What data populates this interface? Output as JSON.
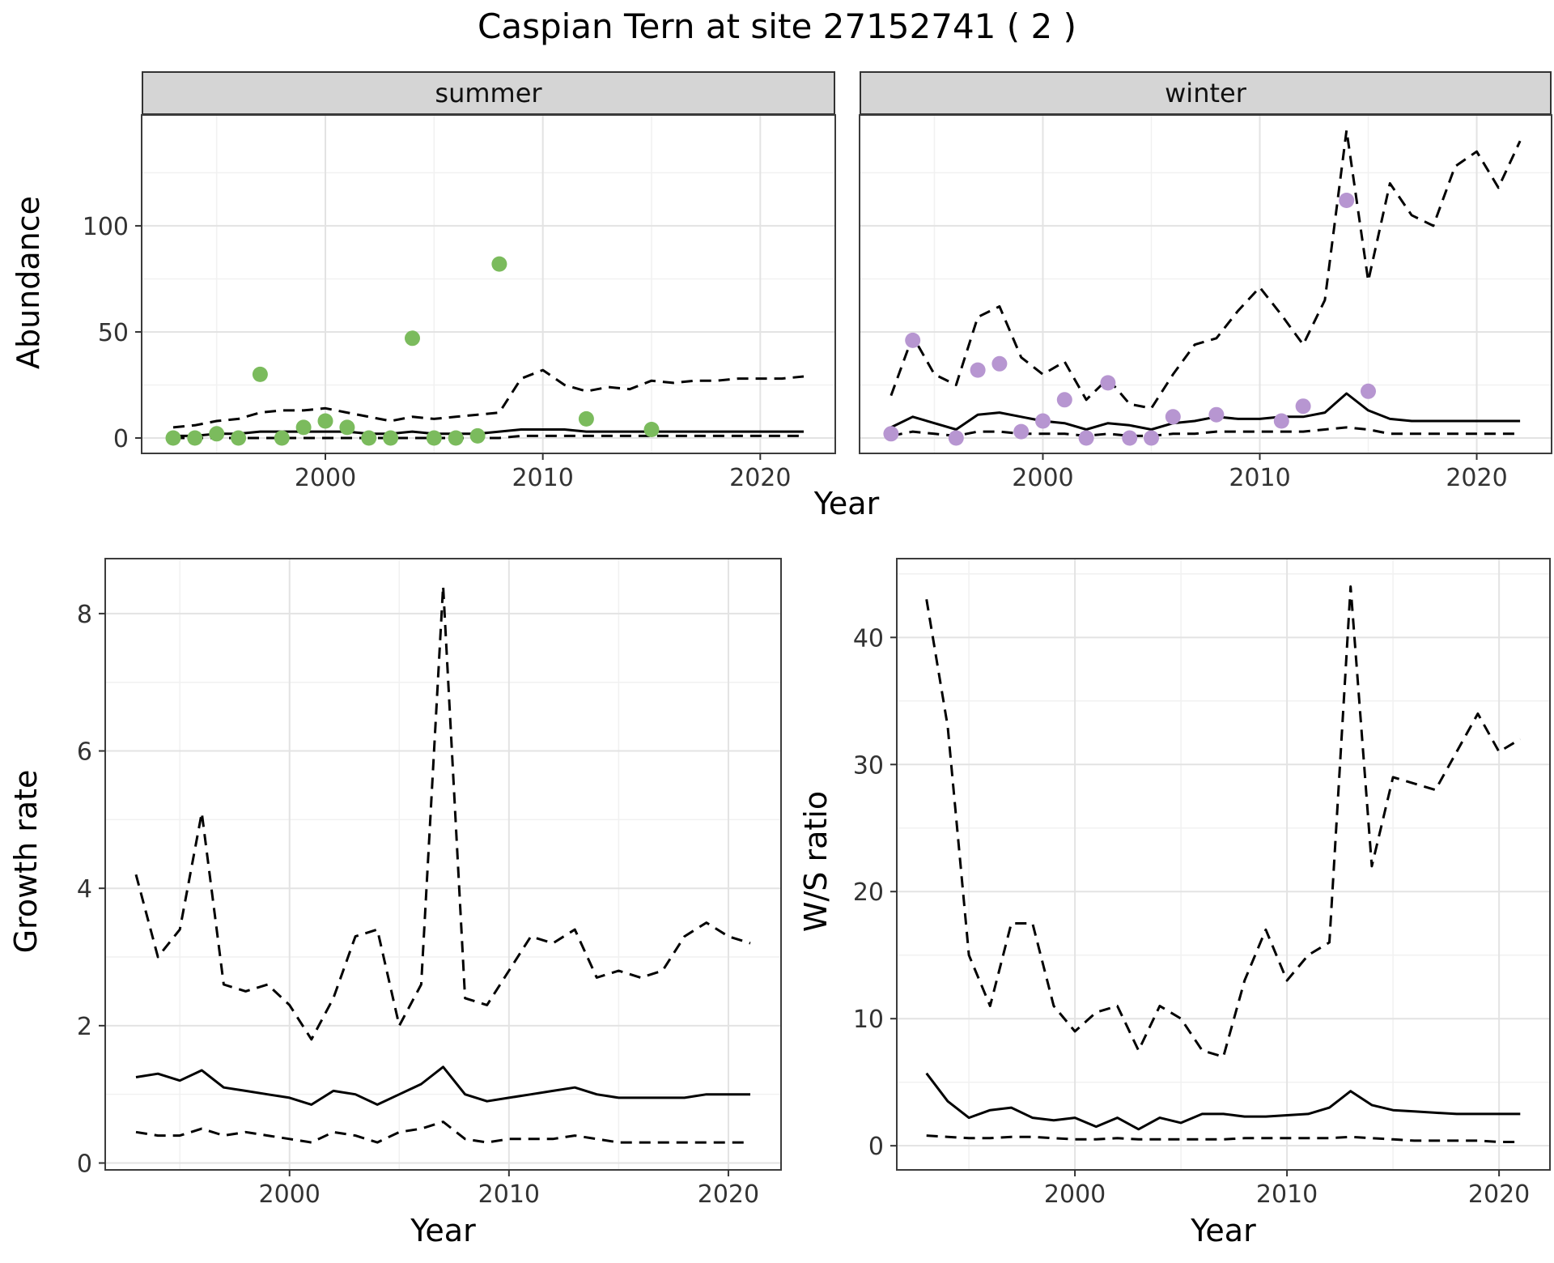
{
  "title": "Caspian Tern at site 27152741 ( 2 )",
  "colors": {
    "summer_point": "#7bbb5d",
    "winter_point": "#b796d1",
    "series_line": "#000000",
    "strip_bg": "#d5d5d5",
    "panel_border": "#3c3c3c",
    "grid_major": "#e3e3e3",
    "grid_minor": "#f1f1f1",
    "tick_color": "#333333"
  },
  "chart_data": [
    {
      "id": "abundance_summer",
      "type": "line",
      "facet_label": "summer",
      "xlabel": "Year",
      "ylabel": "Abundance",
      "xlim": [
        1991.55,
        2023.45
      ],
      "ylim": [
        -7.25,
        152.25
      ],
      "xticks": [
        2000,
        2010,
        2020
      ],
      "yticks": [
        0,
        50,
        100
      ],
      "show_ytick_labels": true,
      "series": [
        {
          "name": "median",
          "style": "solid",
          "x": [
            1993,
            1994,
            1995,
            1996,
            1997,
            1998,
            1999,
            2000,
            2001,
            2002,
            2003,
            2004,
            2005,
            2006,
            2007,
            2008,
            2009,
            2010,
            2011,
            2012,
            2013,
            2014,
            2015,
            2016,
            2017,
            2018,
            2019,
            2020,
            2021,
            2022
          ],
          "y": [
            1,
            1,
            2,
            2,
            3,
            3,
            3,
            3,
            3,
            2,
            2,
            3,
            2,
            2,
            2,
            3,
            4,
            4,
            4,
            3,
            3,
            3,
            3,
            3,
            3,
            3,
            3,
            3,
            3,
            3
          ]
        },
        {
          "name": "upper-ci",
          "style": "dashed",
          "x": [
            1993,
            1994,
            1995,
            1996,
            1997,
            1998,
            1999,
            2000,
            2001,
            2002,
            2003,
            2004,
            2005,
            2006,
            2007,
            2008,
            2009,
            2010,
            2011,
            2012,
            2013,
            2014,
            2015,
            2016,
            2017,
            2018,
            2019,
            2020,
            2021,
            2022
          ],
          "y": [
            5,
            6,
            8,
            9,
            12,
            13,
            13,
            14,
            12,
            10,
            8,
            10,
            9,
            10,
            11,
            12,
            28,
            32,
            25,
            22,
            24,
            23,
            27,
            26,
            27,
            27,
            28,
            28,
            28,
            29
          ]
        },
        {
          "name": "lower-ci",
          "style": "dashed",
          "x": [
            1993,
            1994,
            1995,
            1996,
            1997,
            1998,
            1999,
            2000,
            2001,
            2002,
            2003,
            2004,
            2005,
            2006,
            2007,
            2008,
            2009,
            2010,
            2011,
            2012,
            2013,
            2014,
            2015,
            2016,
            2017,
            2018,
            2019,
            2020,
            2021,
            2022
          ],
          "y": [
            0,
            0,
            0,
            0,
            0,
            0,
            0,
            0,
            0,
            0,
            0,
            0,
            0,
            0,
            0,
            0,
            1,
            1,
            1,
            1,
            1,
            1,
            1,
            1,
            1,
            1,
            1,
            1,
            1,
            1
          ]
        }
      ],
      "points": {
        "color_key": "summer_point",
        "x": [
          1993,
          1994,
          1995,
          1996,
          1997,
          1998,
          1999,
          2000,
          2001,
          2002,
          2003,
          2004,
          2005,
          2006,
          2007,
          2008,
          2012,
          2015
        ],
        "y": [
          0,
          0,
          2,
          0,
          30,
          0,
          5,
          8,
          5,
          0,
          0,
          47,
          0,
          0,
          1,
          82,
          9,
          4
        ]
      }
    },
    {
      "id": "abundance_winter",
      "type": "line",
      "facet_label": "winter",
      "xlabel": "Year",
      "ylabel": "Abundance",
      "xlim": [
        1991.55,
        2023.45
      ],
      "ylim": [
        -7.25,
        152.25
      ],
      "xticks": [
        2000,
        2010,
        2020
      ],
      "yticks": [
        0,
        50,
        100
      ],
      "show_ytick_labels": false,
      "series": [
        {
          "name": "median",
          "style": "solid",
          "x": [
            1993,
            1994,
            1995,
            1996,
            1997,
            1998,
            1999,
            2000,
            2001,
            2002,
            2003,
            2004,
            2005,
            2006,
            2007,
            2008,
            2009,
            2010,
            2011,
            2012,
            2013,
            2014,
            2015,
            2016,
            2017,
            2018,
            2019,
            2020,
            2021,
            2022
          ],
          "y": [
            5,
            10,
            7,
            4,
            11,
            12,
            10,
            8,
            7,
            4,
            7,
            6,
            4,
            7,
            8,
            10,
            9,
            9,
            10,
            10,
            12,
            21,
            13,
            9,
            8,
            8,
            8,
            8,
            8,
            8
          ]
        },
        {
          "name": "upper-ci",
          "style": "dashed",
          "x": [
            1993,
            1994,
            1995,
            1996,
            1997,
            1998,
            1999,
            2000,
            2001,
            2002,
            2003,
            2004,
            2005,
            2006,
            2007,
            2008,
            2009,
            2010,
            2011,
            2012,
            2013,
            2014,
            2015,
            2016,
            2017,
            2018,
            2019,
            2020,
            2021,
            2022
          ],
          "y": [
            20,
            48,
            30,
            25,
            57,
            62,
            38,
            30,
            36,
            18,
            28,
            16,
            14,
            30,
            44,
            47,
            60,
            71,
            58,
            44,
            65,
            145,
            74,
            120,
            105,
            100,
            128,
            135,
            118,
            140
          ]
        },
        {
          "name": "lower-ci",
          "style": "dashed",
          "x": [
            1993,
            1994,
            1995,
            1996,
            1997,
            1998,
            1999,
            2000,
            2001,
            2002,
            2003,
            2004,
            2005,
            2006,
            2007,
            2008,
            2009,
            2010,
            2011,
            2012,
            2013,
            2014,
            2015,
            2016,
            2017,
            2018,
            2019,
            2020,
            2021,
            2022
          ],
          "y": [
            1,
            3,
            2,
            1,
            3,
            3,
            2,
            2,
            2,
            1,
            2,
            1,
            1,
            2,
            2,
            3,
            3,
            3,
            3,
            3,
            4,
            5,
            4,
            2,
            2,
            2,
            2,
            2,
            2,
            2
          ]
        }
      ],
      "points": {
        "color_key": "winter_point",
        "x": [
          1993,
          1994,
          1996,
          1997,
          1998,
          1999,
          2000,
          2001,
          2002,
          2003,
          2004,
          2005,
          2006,
          2008,
          2011,
          2012,
          2014,
          2015
        ],
        "y": [
          2,
          46,
          0,
          32,
          35,
          3,
          8,
          18,
          0,
          26,
          0,
          0,
          10,
          11,
          8,
          15,
          112,
          22
        ]
      }
    },
    {
      "id": "growth_rate",
      "type": "line",
      "facet_label": "",
      "xlabel": "Year",
      "ylabel": "Growth rate",
      "xlim": [
        1991.6,
        2022.4
      ],
      "ylim": [
        -0.1,
        8.8
      ],
      "xticks": [
        2000,
        2010,
        2020
      ],
      "yticks": [
        0,
        2,
        4,
        6,
        8
      ],
      "show_ytick_labels": true,
      "series": [
        {
          "name": "median",
          "style": "solid",
          "x": [
            1993,
            1994,
            1995,
            1996,
            1997,
            1998,
            1999,
            2000,
            2001,
            2002,
            2003,
            2004,
            2005,
            2006,
            2007,
            2008,
            2009,
            2010,
            2011,
            2012,
            2013,
            2014,
            2015,
            2016,
            2017,
            2018,
            2019,
            2020,
            2021
          ],
          "y": [
            1.25,
            1.3,
            1.2,
            1.35,
            1.1,
            1.05,
            1.0,
            0.95,
            0.85,
            1.05,
            1.0,
            0.85,
            1.0,
            1.15,
            1.4,
            1.0,
            0.9,
            0.95,
            1.0,
            1.05,
            1.1,
            1.0,
            0.95,
            0.95,
            0.95,
            0.95,
            1.0,
            1.0,
            1.0
          ]
        },
        {
          "name": "upper-ci",
          "style": "dashed",
          "x": [
            1993,
            1994,
            1995,
            1996,
            1997,
            1998,
            1999,
            2000,
            2001,
            2002,
            2003,
            2004,
            2005,
            2006,
            2007,
            2008,
            2009,
            2010,
            2011,
            2012,
            2013,
            2014,
            2015,
            2016,
            2017,
            2018,
            2019,
            2020,
            2021
          ],
          "y": [
            4.2,
            3.0,
            3.4,
            5.1,
            2.6,
            2.5,
            2.6,
            2.3,
            1.8,
            2.4,
            3.3,
            3.4,
            2.0,
            2.6,
            8.4,
            2.4,
            2.3,
            2.8,
            3.3,
            3.2,
            3.4,
            2.7,
            2.8,
            2.7,
            2.8,
            3.3,
            3.5,
            3.3,
            3.2
          ]
        },
        {
          "name": "lower-ci",
          "style": "dashed",
          "x": [
            1993,
            1994,
            1995,
            1996,
            1997,
            1998,
            1999,
            2000,
            2001,
            2002,
            2003,
            2004,
            2005,
            2006,
            2007,
            2008,
            2009,
            2010,
            2011,
            2012,
            2013,
            2014,
            2015,
            2016,
            2017,
            2018,
            2019,
            2020,
            2021
          ],
          "y": [
            0.45,
            0.4,
            0.4,
            0.5,
            0.4,
            0.45,
            0.4,
            0.35,
            0.3,
            0.45,
            0.4,
            0.3,
            0.45,
            0.5,
            0.6,
            0.35,
            0.3,
            0.35,
            0.35,
            0.35,
            0.4,
            0.35,
            0.3,
            0.3,
            0.3,
            0.3,
            0.3,
            0.3,
            0.3
          ]
        }
      ],
      "points": null
    },
    {
      "id": "ws_ratio",
      "type": "line",
      "facet_label": "",
      "xlabel": "Year",
      "ylabel": "W/S ratio",
      "xlim": [
        1991.6,
        2022.4
      ],
      "ylim": [
        -1.9,
        46.2
      ],
      "xticks": [
        2000,
        2010,
        2020
      ],
      "yticks": [
        0,
        10,
        20,
        30,
        40
      ],
      "show_ytick_labels": true,
      "series": [
        {
          "name": "median",
          "style": "solid",
          "x": [
            1993,
            1994,
            1995,
            1996,
            1997,
            1998,
            1999,
            2000,
            2001,
            2002,
            2003,
            2004,
            2005,
            2006,
            2007,
            2008,
            2009,
            2010,
            2011,
            2012,
            2013,
            2014,
            2015,
            2016,
            2017,
            2018,
            2019,
            2020,
            2021
          ],
          "y": [
            5.7,
            3.5,
            2.2,
            2.8,
            3.0,
            2.2,
            2.0,
            2.2,
            1.5,
            2.2,
            1.3,
            2.2,
            1.8,
            2.5,
            2.5,
            2.3,
            2.3,
            2.4,
            2.5,
            3.0,
            4.3,
            3.2,
            2.8,
            2.7,
            2.6,
            2.5,
            2.5,
            2.5,
            2.5
          ]
        },
        {
          "name": "upper-ci",
          "style": "dashed",
          "x": [
            1993,
            1994,
            1995,
            1996,
            1997,
            1998,
            1999,
            2000,
            2001,
            2002,
            2003,
            2004,
            2005,
            2006,
            2007,
            2008,
            2009,
            2010,
            2011,
            2012,
            2013,
            2014,
            2015,
            2016,
            2017,
            2018,
            2019,
            2020,
            2021
          ],
          "y": [
            43,
            33,
            15,
            11,
            17.5,
            17.5,
            11,
            9,
            10.5,
            11,
            7.5,
            11,
            10,
            7.5,
            7,
            13,
            17,
            13,
            15,
            16,
            44,
            22,
            29,
            28.5,
            28,
            31,
            34,
            31,
            32
          ]
        },
        {
          "name": "lower-ci",
          "style": "dashed",
          "x": [
            1993,
            1994,
            1995,
            1996,
            1997,
            1998,
            1999,
            2000,
            2001,
            2002,
            2003,
            2004,
            2005,
            2006,
            2007,
            2008,
            2009,
            2010,
            2011,
            2012,
            2013,
            2014,
            2015,
            2016,
            2017,
            2018,
            2019,
            2020,
            2021
          ],
          "y": [
            0.8,
            0.7,
            0.6,
            0.6,
            0.7,
            0.7,
            0.6,
            0.5,
            0.5,
            0.6,
            0.5,
            0.5,
            0.5,
            0.5,
            0.5,
            0.6,
            0.6,
            0.6,
            0.6,
            0.6,
            0.7,
            0.6,
            0.5,
            0.4,
            0.4,
            0.4,
            0.4,
            0.3,
            0.3
          ]
        }
      ],
      "points": null
    }
  ]
}
